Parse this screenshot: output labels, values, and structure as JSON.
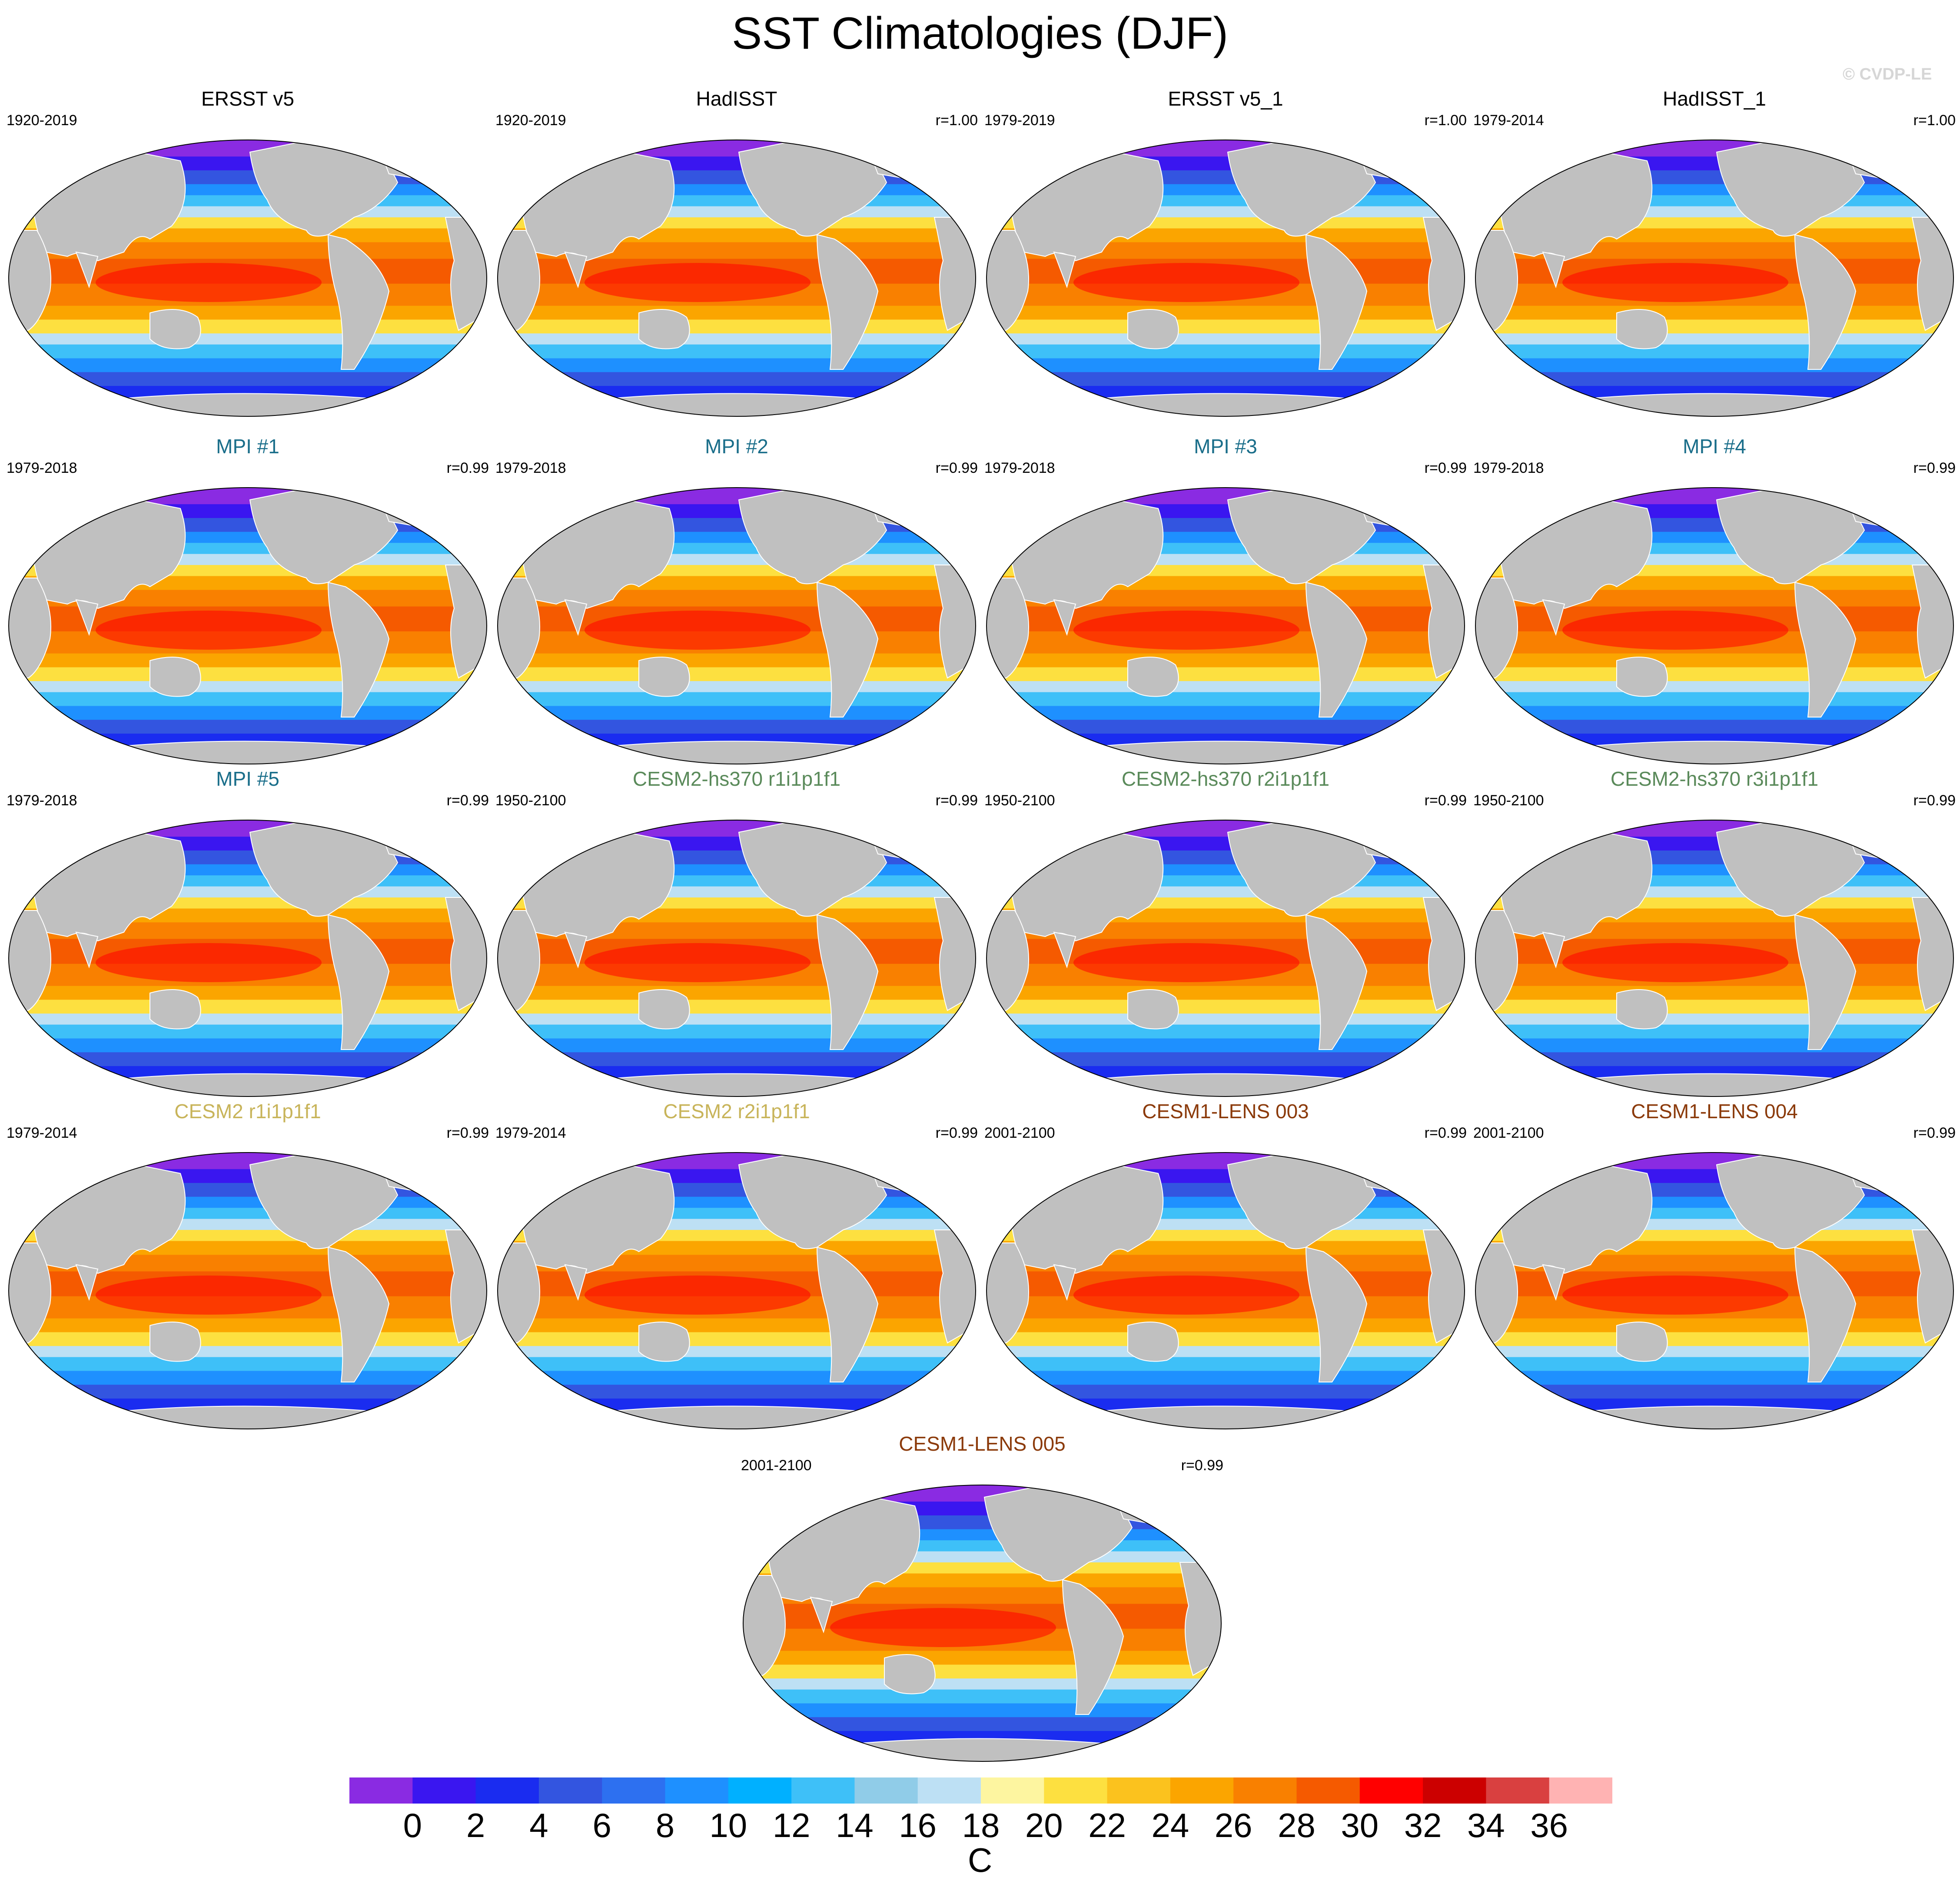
{
  "title": "SST Climatologies (DJF)",
  "watermark": "© CVDP-LE",
  "units": "C",
  "colorbar": {
    "labels": [
      "0",
      "2",
      "4",
      "6",
      "8",
      "10",
      "12",
      "14",
      "16",
      "18",
      "20",
      "22",
      "24",
      "26",
      "28",
      "30",
      "32",
      "34",
      "36"
    ],
    "colors": [
      "#8a2be2",
      "#3a16f0",
      "#1a2cf0",
      "#3355e0",
      "#2d70f0",
      "#1e90ff",
      "#00b0ff",
      "#3ec0f8",
      "#90cce8",
      "#bde0f4",
      "#fdf5a0",
      "#fde040",
      "#fbc21e",
      "#fba500",
      "#f98000",
      "#f55a00",
      "#ff0000",
      "#cc0000",
      "#d94040",
      "#ffb3b3"
    ]
  },
  "land_color": "#c0c0c0",
  "panels": [
    {
      "title": "ERSST v5",
      "color": "#000000",
      "period": "1920-2019",
      "r": ""
    },
    {
      "title": "HadISST",
      "color": "#000000",
      "period": "1920-2019",
      "r": "r=1.00"
    },
    {
      "title": "ERSST v5_1",
      "color": "#000000",
      "period": "1979-2019",
      "r": "r=1.00"
    },
    {
      "title": "HadISST_1",
      "color": "#000000",
      "period": "1979-2014",
      "r": "r=1.00"
    },
    {
      "title": "MPI #1",
      "color": "#1a6e8a",
      "period": "1979-2018",
      "r": "r=0.99"
    },
    {
      "title": "MPI #2",
      "color": "#1a6e8a",
      "period": "1979-2018",
      "r": "r=0.99"
    },
    {
      "title": "MPI #3",
      "color": "#1a6e8a",
      "period": "1979-2018",
      "r": "r=0.99"
    },
    {
      "title": "MPI #4",
      "color": "#1a6e8a",
      "period": "1979-2018",
      "r": "r=0.99"
    },
    {
      "title": "MPI #5",
      "color": "#1a6e8a",
      "period": "1979-2018",
      "r": "r=0.99"
    },
    {
      "title": "CESM2-hs370 r1i1p1f1",
      "color": "#5a8a5a",
      "period": "1950-2100",
      "r": "r=0.99"
    },
    {
      "title": "CESM2-hs370 r2i1p1f1",
      "color": "#5a8a5a",
      "period": "1950-2100",
      "r": "r=0.99"
    },
    {
      "title": "CESM2-hs370 r3i1p1f1",
      "color": "#5a8a5a",
      "period": "1950-2100",
      "r": "r=0.99"
    },
    {
      "title": "CESM2 r1i1p1f1",
      "color": "#c8b45a",
      "period": "1979-2014",
      "r": "r=0.99"
    },
    {
      "title": "CESM2 r2i1p1f1",
      "color": "#c8b45a",
      "period": "1979-2014",
      "r": "r=0.99"
    },
    {
      "title": "CESM1-LENS 003",
      "color": "#8b3a0a",
      "period": "2001-2100",
      "r": "r=0.99"
    },
    {
      "title": "CESM1-LENS 004",
      "color": "#8b3a0a",
      "period": "2001-2100",
      "r": "r=0.99"
    },
    {
      "title": "CESM1-LENS 005",
      "color": "#8b3a0a",
      "period": "2001-2100",
      "r": "r=0.99"
    }
  ]
}
